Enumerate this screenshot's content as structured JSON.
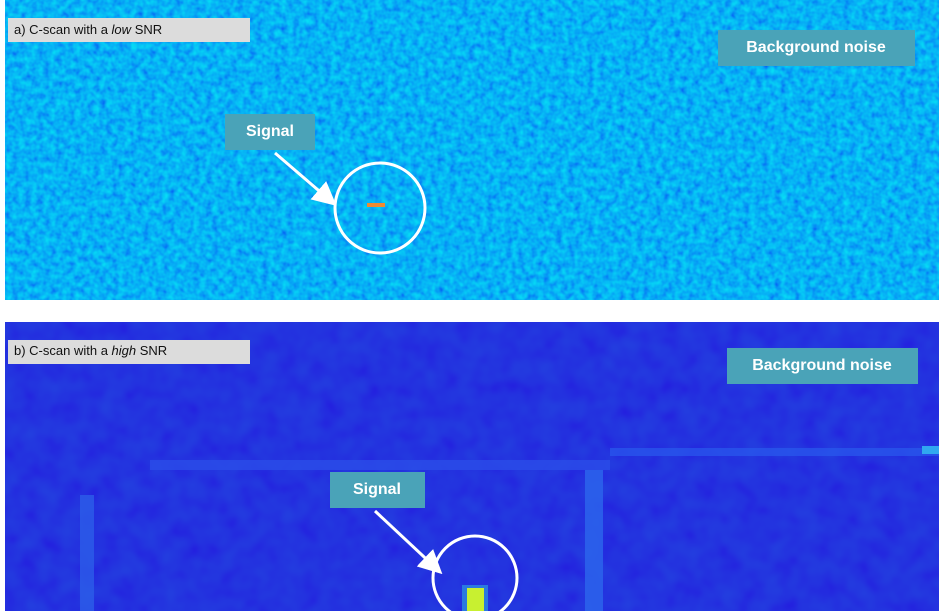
{
  "panels": [
    {
      "label_prefix": "a) C-scan with a",
      "label_emphasis": "low",
      "label_suffix": "SNR",
      "noise_label": "Background noise",
      "signal_label": "Signal"
    },
    {
      "label_prefix": "b) C-scan with a",
      "label_emphasis": "high",
      "label_suffix": "SNR",
      "noise_label": "Background noise",
      "signal_label": "Signal"
    }
  ]
}
